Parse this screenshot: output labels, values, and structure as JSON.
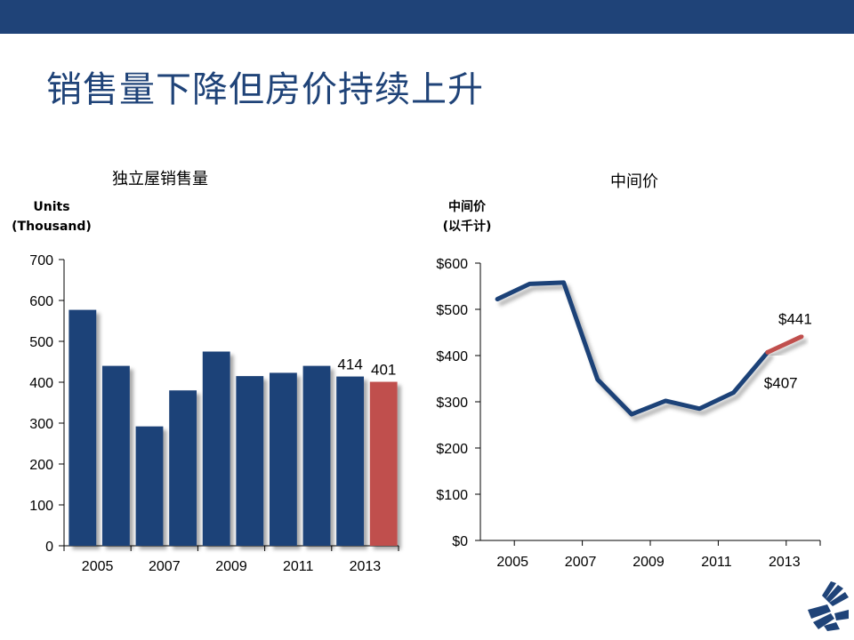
{
  "slide": {
    "title": "销售量下降但房价持续上升",
    "colors": {
      "bar": "#1f4378",
      "bar_highlight": "#c0504d",
      "line": "#1f4378",
      "line_highlight": "#c0504d",
      "header": "#1f4378"
    }
  },
  "left_chart": {
    "title": "独立屋销售量",
    "ylabel_line1": "Units",
    "ylabel_line2": "(Thousand)"
  },
  "right_chart": {
    "title": "中间价",
    "ylabel_line1": "中间价",
    "ylabel_line2": "(以千计)"
  },
  "logo": {
    "icon": "company-logo-icon"
  },
  "chart_data": [
    {
      "type": "bar",
      "title": "独立屋销售量",
      "ylabel": "Units (Thousand)",
      "xlabel": "",
      "categories": [
        "2005",
        "2006",
        "2007",
        "2008",
        "2009",
        "2010",
        "2011",
        "2012",
        "2013",
        "2014"
      ],
      "x_tick_labels": [
        "2005",
        "2007",
        "2009",
        "2011",
        "2013"
      ],
      "y_tick_labels": [
        "0",
        "100",
        "200",
        "300",
        "400",
        "500",
        "600",
        "700"
      ],
      "values": [
        577,
        440,
        292,
        380,
        475,
        415,
        423,
        440,
        414,
        401
      ],
      "highlight_index": 9,
      "data_labels": {
        "8": "414",
        "9": "401"
      },
      "ylim": [
        0,
        700
      ],
      "grid": false
    },
    {
      "type": "line",
      "title": "中间价",
      "ylabel": "中间价 (以千计)",
      "xlabel": "",
      "x": [
        2005,
        2005.95,
        2006.95,
        2007.95,
        2008.95,
        2009.95,
        2010.95,
        2011.95,
        2012.95,
        2013.95
      ],
      "x_tick_labels": [
        "2005",
        "2007",
        "2009",
        "2011",
        "2013"
      ],
      "y_tick_labels": [
        "$0",
        "$100",
        "$200",
        "$300",
        "$400",
        "$500",
        "$600"
      ],
      "values": [
        522,
        555,
        558,
        348,
        273,
        302,
        285,
        320,
        407,
        441
      ],
      "highlight_from_index": 8,
      "data_labels": {
        "8": "$407",
        "9": "$441"
      },
      "ylim": [
        0,
        600
      ],
      "grid": false
    }
  ]
}
